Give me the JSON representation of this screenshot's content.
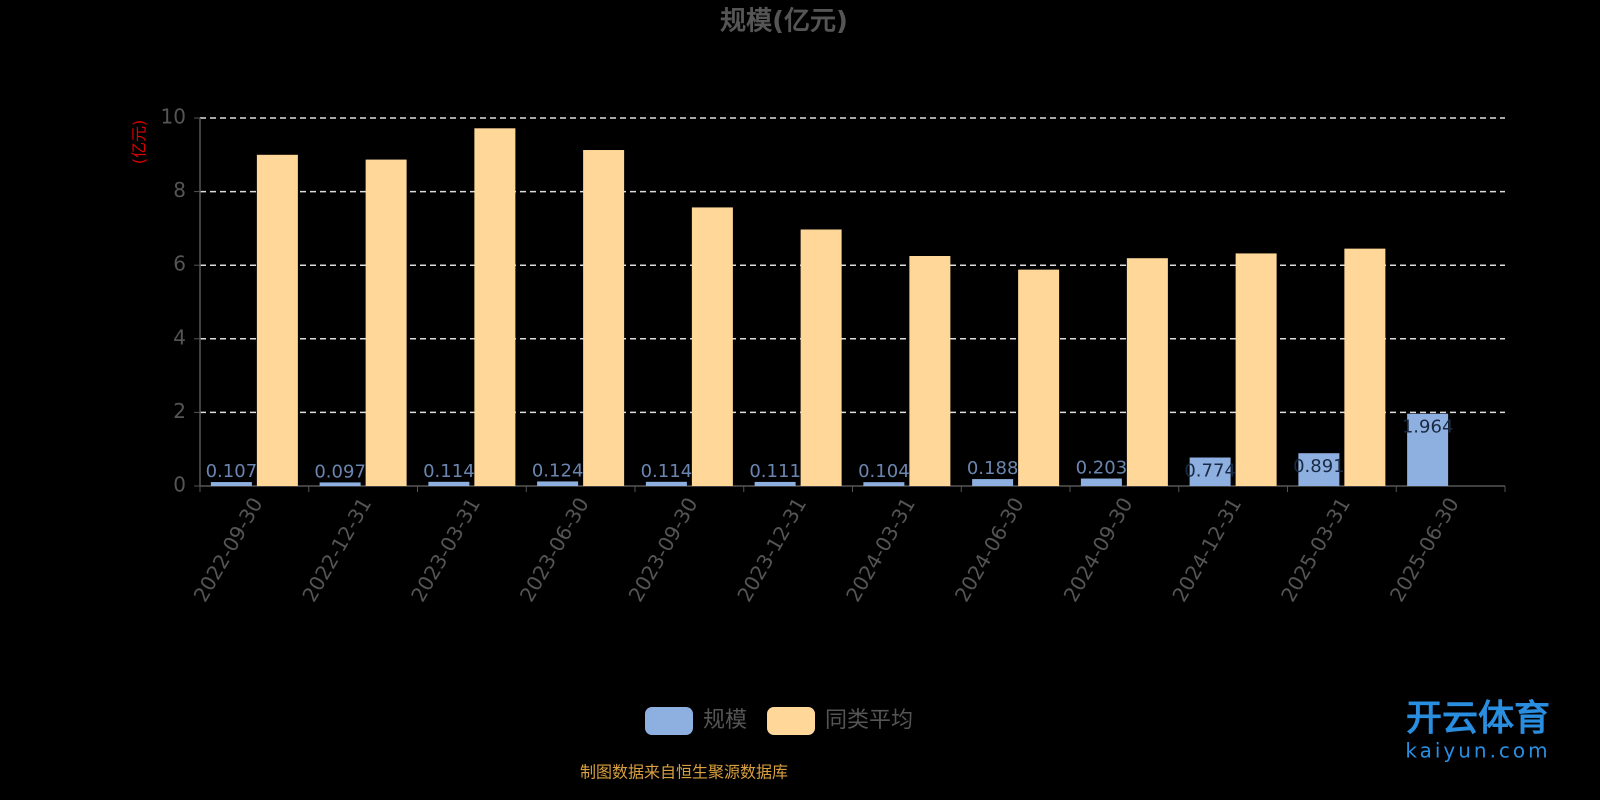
{
  "chart_data": {
    "type": "bar",
    "title": "规模(亿元)",
    "y_label": "(亿元)",
    "categories": [
      "2022-09-30",
      "2022-12-31",
      "2023-03-31",
      "2023-06-30",
      "2023-09-30",
      "2023-12-31",
      "2024-03-31",
      "2024-06-30",
      "2024-09-30",
      "2024-12-31",
      "2025-03-31",
      "2025-06-30"
    ],
    "series": [
      {
        "name": "规模",
        "color": "#8eb0e0",
        "values": [
          0.107,
          0.097,
          0.114,
          0.124,
          0.114,
          0.111,
          0.104,
          0.188,
          0.203,
          0.774,
          0.891,
          1.964
        ]
      },
      {
        "name": "同类平均",
        "color": "#ffd899",
        "values": [
          9.0,
          8.87,
          9.72,
          9.13,
          7.57,
          6.97,
          6.25,
          5.88,
          6.19,
          6.32,
          6.45,
          null
        ]
      }
    ],
    "ylim": [
      0,
      10
    ],
    "yticks": [
      0,
      2,
      4,
      6,
      8,
      10
    ],
    "grid": true,
    "legend": "bottom",
    "source": "制图数据来自恒生聚源数据库"
  },
  "watermark": {
    "name": "开云体育",
    "site": "kaiyun.com"
  }
}
